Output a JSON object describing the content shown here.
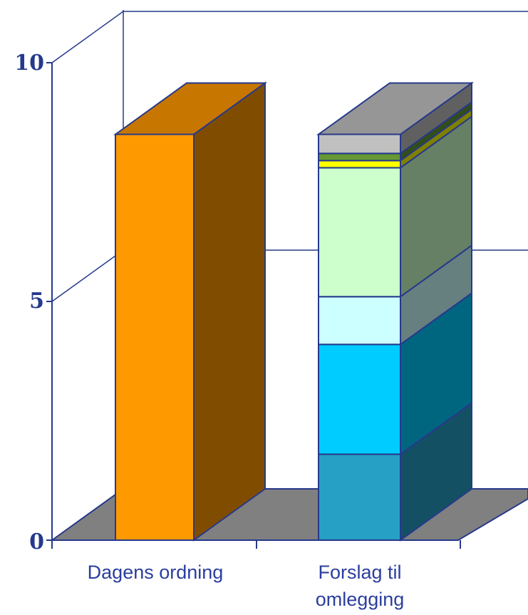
{
  "chart_data": {
    "type": "bar",
    "stacked": true,
    "three_d": true,
    "categories": [
      "Dagens ordning",
      "Forslag til omlegging"
    ],
    "y_ticks": [
      "0",
      "5",
      "10"
    ],
    "ylim": [
      0,
      10
    ],
    "grid": true,
    "legend": "none",
    "bars": [
      {
        "category": "Dagens ordning",
        "segments": [
          {
            "value": 8.5,
            "color": "#ff9900"
          }
        ]
      },
      {
        "category": "Forslag til omlegging",
        "segments": [
          {
            "value": 1.8,
            "color": "#27a0c5"
          },
          {
            "value": 2.3,
            "color": "#00ccff"
          },
          {
            "value": 1.0,
            "color": "#ccffff"
          },
          {
            "value": 2.7,
            "color": "#ccffcc"
          },
          {
            "value": 0.15,
            "color": "#ffff00"
          },
          {
            "value": 0.15,
            "color": "#669933"
          },
          {
            "value": 0.4,
            "color": "#c0c0c0"
          }
        ]
      }
    ],
    "colors": {
      "axis": "#26398c",
      "floor": "#808080",
      "text": "#2b3e9e"
    }
  }
}
